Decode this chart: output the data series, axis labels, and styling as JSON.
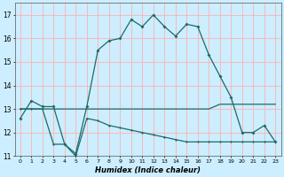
{
  "xlabel": "Humidex (Indice chaleur)",
  "bg_color": "#cceeff",
  "grid_color": "#ffb0b0",
  "line_color": "#1a6b6b",
  "xlim": [
    -0.5,
    23.5
  ],
  "ylim": [
    11,
    17.5
  ],
  "xticks": [
    0,
    1,
    2,
    3,
    4,
    5,
    6,
    7,
    8,
    9,
    10,
    11,
    12,
    13,
    14,
    15,
    16,
    17,
    18,
    19,
    20,
    21,
    22,
    23
  ],
  "yticks": [
    11,
    12,
    13,
    14,
    15,
    16,
    17
  ],
  "line1_x": [
    0,
    1,
    2,
    3,
    4,
    5,
    6,
    7,
    8,
    9,
    10,
    11,
    12,
    13,
    14,
    15,
    16,
    17,
    18,
    19,
    20,
    21,
    22,
    23
  ],
  "line1_y": [
    12.6,
    13.35,
    13.1,
    13.1,
    11.5,
    11.1,
    13.1,
    15.5,
    15.9,
    16.0,
    16.8,
    16.5,
    17.0,
    16.5,
    16.1,
    16.6,
    16.5,
    15.3,
    14.4,
    13.5,
    12.0,
    12.0,
    12.3,
    11.6
  ],
  "line2_x": [
    0,
    1,
    2,
    3,
    4,
    5,
    6,
    7,
    8,
    9,
    10,
    11,
    12,
    13,
    14,
    15,
    16,
    17,
    18,
    23
  ],
  "line2_y": [
    13.0,
    13.0,
    13.0,
    13.0,
    13.0,
    13.0,
    13.0,
    13.0,
    13.0,
    13.0,
    13.0,
    13.0,
    13.0,
    13.0,
    13.0,
    13.0,
    13.0,
    13.0,
    13.2,
    13.2
  ],
  "line3_x": [
    0,
    1,
    2,
    3,
    4,
    5,
    6,
    7,
    8,
    9,
    10,
    11,
    12,
    13,
    14,
    15,
    16,
    17,
    18,
    19,
    20,
    21,
    22,
    23
  ],
  "line3_y": [
    13.0,
    13.0,
    13.0,
    11.5,
    11.5,
    11.0,
    12.6,
    12.5,
    12.3,
    12.2,
    12.1,
    12.0,
    11.9,
    11.8,
    11.7,
    11.6,
    11.6,
    11.6,
    11.6,
    11.6,
    11.6,
    11.6,
    11.6,
    11.6
  ]
}
